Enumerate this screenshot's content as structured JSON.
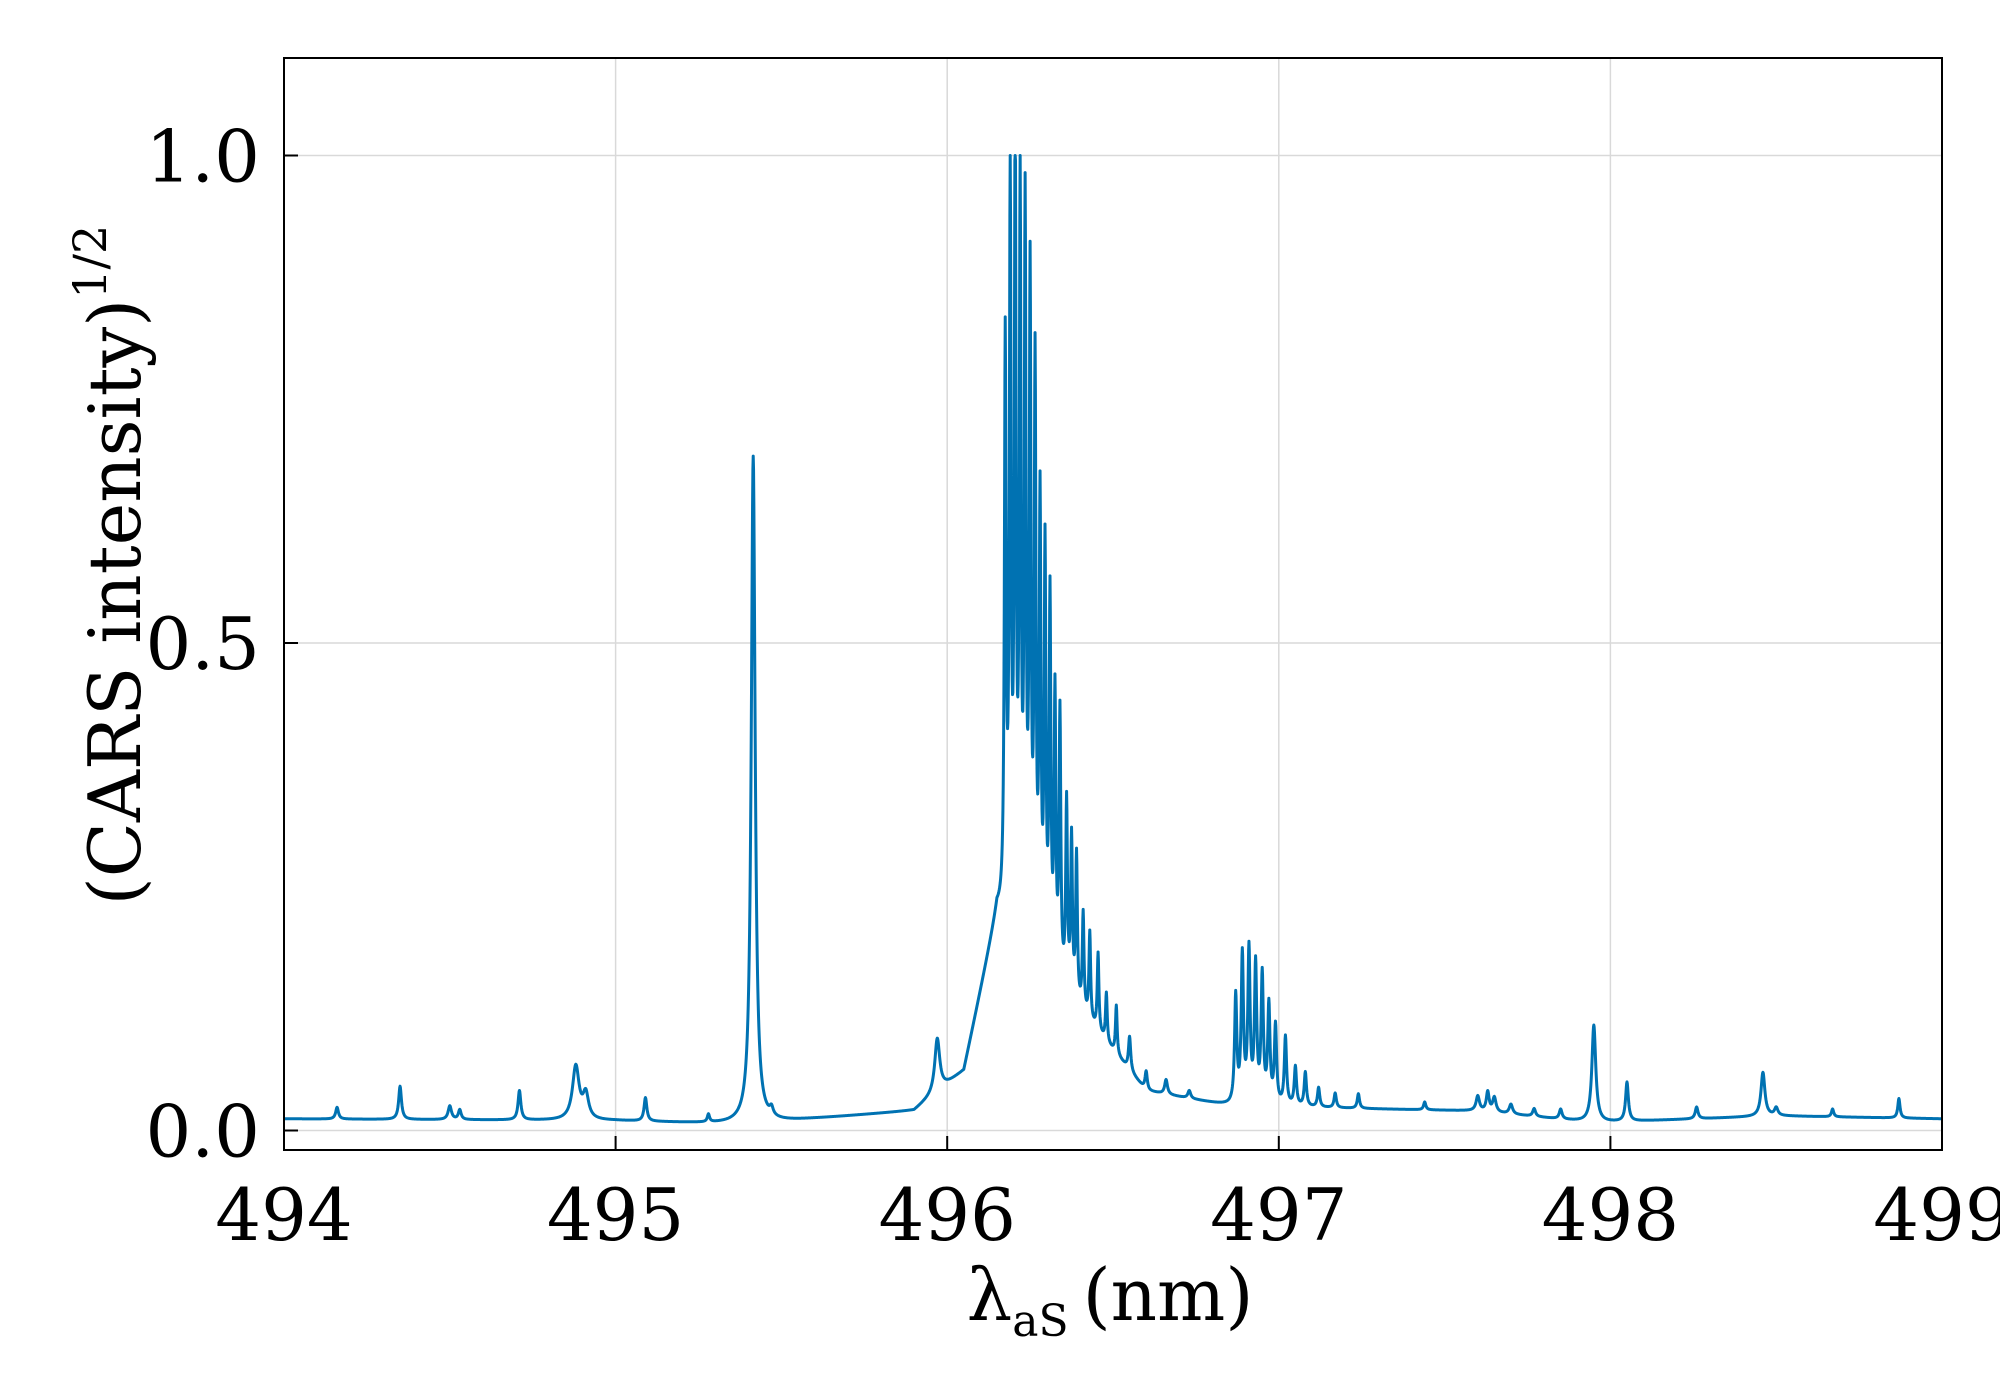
{
  "chart_data": {
    "type": "line",
    "xlabel": {
      "symbol": "λ",
      "subscript": "aS",
      "unit": "(nm)"
    },
    "ylabel": {
      "text": "(CARS intensity)",
      "superscript": "1/2"
    },
    "xlim": [
      494,
      499
    ],
    "ylim": [
      -0.02,
      1.1
    ],
    "xticks": [
      "494",
      "495",
      "496",
      "497",
      "498",
      "499"
    ],
    "yticks": [
      "0.0",
      "0.5",
      "1.0"
    ],
    "grid": true,
    "line_color": "#0072b2",
    "series": [
      {
        "baseline": [
          [
            494.0,
            0.012
          ],
          [
            495.0,
            0.01
          ],
          [
            495.4,
            0.006
          ],
          [
            495.6,
            0.012
          ],
          [
            495.9,
            0.02
          ],
          [
            496.05,
            0.06
          ],
          [
            496.15,
            0.22
          ],
          [
            496.6,
            0.04
          ],
          [
            496.85,
            0.025
          ],
          [
            497.6,
            0.02
          ],
          [
            497.95,
            0.008
          ],
          [
            498.5,
            0.015
          ],
          [
            499.0,
            0.012
          ]
        ],
        "peaks": [
          [
            494.16,
            0.012,
            0.005
          ],
          [
            494.35,
            0.034,
            0.005
          ],
          [
            494.5,
            0.014,
            0.006
          ],
          [
            494.53,
            0.01,
            0.005
          ],
          [
            494.71,
            0.03,
            0.005
          ],
          [
            494.88,
            0.055,
            0.012
          ],
          [
            494.91,
            0.025,
            0.01
          ],
          [
            495.09,
            0.024,
            0.005
          ],
          [
            495.28,
            0.008,
            0.004
          ],
          [
            495.415,
            0.685,
            0.007
          ],
          [
            495.47,
            0.008,
            0.006
          ],
          [
            495.97,
            0.055,
            0.009
          ],
          [
            496.175,
            0.58,
            0.003
          ],
          [
            496.19,
            0.74,
            0.003
          ],
          [
            496.205,
            0.8,
            0.003
          ],
          [
            496.22,
            0.73,
            0.003
          ],
          [
            496.235,
            0.72,
            0.003
          ],
          [
            496.25,
            0.66,
            0.003
          ],
          [
            496.265,
            0.58,
            0.003
          ],
          [
            496.28,
            0.45,
            0.003
          ],
          [
            496.295,
            0.41,
            0.003
          ],
          [
            496.31,
            0.37,
            0.003
          ],
          [
            496.325,
            0.28,
            0.003
          ],
          [
            496.34,
            0.27,
            0.003
          ],
          [
            496.36,
            0.19,
            0.003
          ],
          [
            496.375,
            0.16,
            0.003
          ],
          [
            496.39,
            0.15,
            0.003
          ],
          [
            496.41,
            0.1,
            0.003
          ],
          [
            496.43,
            0.09,
            0.003
          ],
          [
            496.455,
            0.08,
            0.003
          ],
          [
            496.48,
            0.05,
            0.003
          ],
          [
            496.51,
            0.05,
            0.003
          ],
          [
            496.55,
            0.035,
            0.004
          ],
          [
            496.6,
            0.02,
            0.004
          ],
          [
            496.66,
            0.015,
            0.005
          ],
          [
            496.73,
            0.008,
            0.005
          ],
          [
            496.87,
            0.11,
            0.004
          ],
          [
            496.89,
            0.15,
            0.004
          ],
          [
            496.91,
            0.155,
            0.004
          ],
          [
            496.93,
            0.14,
            0.004
          ],
          [
            496.95,
            0.13,
            0.004
          ],
          [
            496.97,
            0.1,
            0.004
          ],
          [
            496.99,
            0.08,
            0.004
          ],
          [
            497.02,
            0.07,
            0.004
          ],
          [
            497.05,
            0.04,
            0.004
          ],
          [
            497.08,
            0.035,
            0.004
          ],
          [
            497.12,
            0.02,
            0.004
          ],
          [
            497.17,
            0.015,
            0.004
          ],
          [
            497.24,
            0.015,
            0.004
          ],
          [
            497.44,
            0.008,
            0.004
          ],
          [
            497.6,
            0.015,
            0.006
          ],
          [
            497.63,
            0.02,
            0.005
          ],
          [
            497.65,
            0.015,
            0.006
          ],
          [
            497.7,
            0.01,
            0.006
          ],
          [
            497.77,
            0.008,
            0.005
          ],
          [
            497.85,
            0.01,
            0.005
          ],
          [
            497.95,
            0.1,
            0.007
          ],
          [
            498.05,
            0.04,
            0.005
          ],
          [
            498.26,
            0.012,
            0.005
          ],
          [
            498.46,
            0.045,
            0.007
          ],
          [
            498.5,
            0.008,
            0.006
          ],
          [
            498.67,
            0.008,
            0.004
          ],
          [
            498.87,
            0.02,
            0.004
          ]
        ]
      }
    ]
  }
}
